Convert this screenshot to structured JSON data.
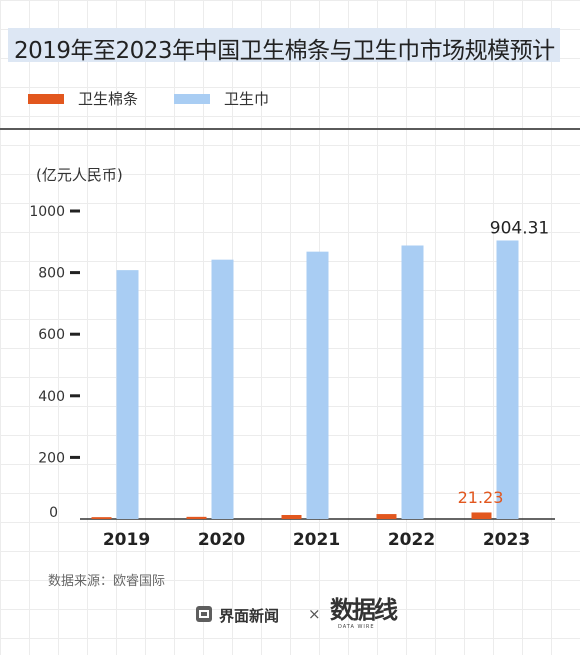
{
  "title": "2019年至2023年中国卫生棉条与卫生巾市场规模预计",
  "legend": [
    {
      "label": "卫生棉条",
      "color": "#e2571e"
    },
    {
      "label": "卫生巾",
      "color": "#a9cdf3"
    }
  ],
  "unit_label": "(亿元人民币)",
  "source": "数据来源：欧睿国际",
  "brand": {
    "name": "界面新闻",
    "separator": "×",
    "logo_text": "数据线",
    "logo_sub": "DATA WIRE"
  },
  "chart_data": {
    "type": "bar",
    "categories": [
      "2019",
      "2020",
      "2021",
      "2022",
      "2023"
    ],
    "series": [
      {
        "name": "卫生棉条",
        "color": "#e2571e",
        "values": [
          6,
          7,
          13,
          16,
          21.23
        ]
      },
      {
        "name": "卫生巾",
        "color": "#a9cdf3",
        "values": [
          808,
          842,
          868,
          888,
          904.31
        ]
      }
    ],
    "data_labels": [
      {
        "series": 0,
        "index": 4,
        "text": "21.23"
      },
      {
        "series": 1,
        "index": 4,
        "text": "904.31"
      }
    ],
    "ylim": [
      0,
      1000
    ],
    "yticks": [
      0,
      200,
      400,
      600,
      800,
      1000
    ],
    "ylabel": "(亿元人民币)",
    "grid": false
  }
}
